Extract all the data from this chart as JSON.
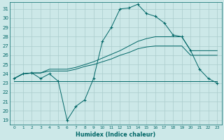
{
  "xlabel": "Humidex (Indice chaleur)",
  "bg_color": "#cce8e8",
  "grid_color": "#aacccc",
  "line_color": "#006666",
  "xlim": [
    -0.5,
    23.5
  ],
  "ylim": [
    18.5,
    31.7
  ],
  "yticks": [
    19,
    20,
    21,
    22,
    23,
    24,
    25,
    26,
    27,
    28,
    29,
    30,
    31
  ],
  "xticks": [
    0,
    1,
    2,
    3,
    4,
    5,
    6,
    7,
    8,
    9,
    10,
    11,
    12,
    13,
    14,
    15,
    16,
    17,
    18,
    19,
    20,
    21,
    22,
    23
  ],
  "line_jagged_x": [
    0,
    1,
    2,
    3,
    4,
    5,
    6,
    7,
    8,
    9,
    10,
    11,
    12,
    13,
    14,
    15,
    16,
    17,
    18,
    19,
    20,
    21,
    22,
    23
  ],
  "line_jagged_y": [
    23.5,
    24.0,
    24.1,
    23.5,
    24.0,
    23.2,
    19.0,
    20.5,
    21.2,
    23.5,
    27.5,
    29.0,
    31.0,
    31.1,
    31.5,
    30.5,
    30.2,
    29.5,
    28.2,
    28.0,
    26.5,
    24.5,
    23.5,
    23.0
  ],
  "line_flat_x": [
    0,
    1,
    2,
    3,
    4,
    5,
    6,
    7,
    8,
    9,
    10,
    11,
    12,
    13,
    14,
    15,
    16,
    17,
    18,
    19,
    20,
    21,
    22,
    23
  ],
  "line_flat_y": [
    23.2,
    23.2,
    23.2,
    23.2,
    23.2,
    23.2,
    23.2,
    23.2,
    23.2,
    23.2,
    23.2,
    23.2,
    23.2,
    23.2,
    23.2,
    23.2,
    23.2,
    23.2,
    23.2,
    23.2,
    23.2,
    23.2,
    23.2,
    23.2
  ],
  "line_upper_x": [
    0,
    1,
    2,
    3,
    4,
    5,
    6,
    7,
    8,
    9,
    10,
    11,
    12,
    13,
    14,
    15,
    16,
    17,
    18,
    19,
    20,
    21,
    22,
    23
  ],
  "line_upper_y": [
    23.5,
    24.0,
    24.1,
    24.1,
    24.5,
    24.5,
    24.5,
    24.7,
    25.0,
    25.3,
    25.7,
    26.1,
    26.5,
    27.0,
    27.5,
    27.8,
    28.0,
    28.0,
    28.0,
    28.0,
    26.5,
    26.5,
    26.5,
    26.5
  ],
  "line_lower_x": [
    0,
    1,
    2,
    3,
    4,
    5,
    6,
    7,
    8,
    9,
    10,
    11,
    12,
    13,
    14,
    15,
    16,
    17,
    18,
    19,
    20,
    21,
    22,
    23
  ],
  "line_lower_y": [
    23.5,
    24.0,
    24.1,
    24.1,
    24.3,
    24.3,
    24.3,
    24.5,
    24.8,
    25.0,
    25.3,
    25.6,
    26.0,
    26.3,
    26.7,
    26.9,
    27.0,
    27.0,
    27.0,
    27.0,
    26.0,
    26.0,
    26.0,
    26.0
  ]
}
